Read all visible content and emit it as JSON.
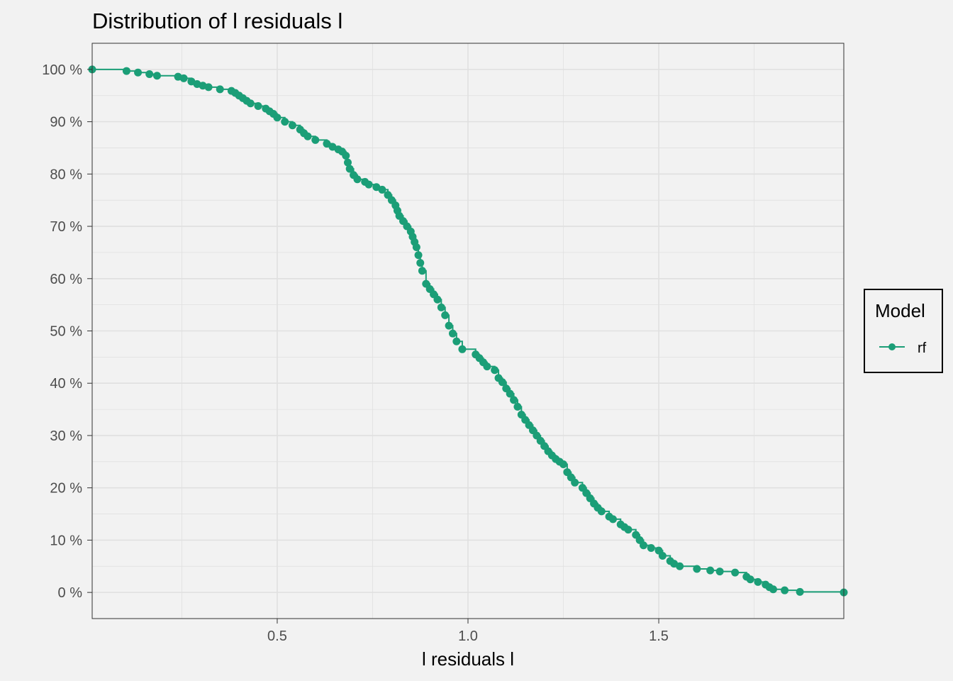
{
  "chart_data": {
    "type": "line",
    "title": "Distribution of l residuals l",
    "xlabel": "l residuals l",
    "ylabel": "",
    "xlim": [
      0.015,
      1.985
    ],
    "ylim": [
      -0.05,
      1.05
    ],
    "x_ticks": [
      0.5,
      1.0,
      1.5
    ],
    "x_tick_labels": [
      "0.5",
      "1.0",
      "1.5"
    ],
    "y_ticks": [
      0,
      0.1,
      0.2,
      0.3,
      0.4,
      0.5,
      0.6,
      0.7,
      0.8,
      0.9,
      1.0
    ],
    "y_tick_labels": [
      "0 %",
      "10 %",
      "20 %",
      "30 %",
      "40 %",
      "50 %",
      "60 %",
      "70 %",
      "80 %",
      "90 %",
      "100 %"
    ],
    "grid": true,
    "step": true,
    "legend": {
      "title": "Model",
      "position": "right"
    },
    "colors": {
      "series": "#1b9e77",
      "background": "#f2f2f2",
      "grid": "#e0e0e0",
      "panel_border": "#333333"
    },
    "series": [
      {
        "name": "rf",
        "x": [
          0.015,
          0.105,
          0.135,
          0.165,
          0.185,
          0.24,
          0.255,
          0.275,
          0.29,
          0.305,
          0.32,
          0.35,
          0.38,
          0.39,
          0.4,
          0.41,
          0.42,
          0.43,
          0.45,
          0.47,
          0.48,
          0.49,
          0.5,
          0.52,
          0.54,
          0.56,
          0.57,
          0.58,
          0.6,
          0.63,
          0.645,
          0.66,
          0.67,
          0.68,
          0.685,
          0.69,
          0.7,
          0.71,
          0.73,
          0.74,
          0.76,
          0.775,
          0.79,
          0.8,
          0.81,
          0.815,
          0.82,
          0.83,
          0.84,
          0.85,
          0.855,
          0.86,
          0.865,
          0.87,
          0.875,
          0.88,
          0.89,
          0.9,
          0.91,
          0.92,
          0.93,
          0.94,
          0.95,
          0.96,
          0.97,
          0.985,
          1.02,
          1.03,
          1.04,
          1.05,
          1.07,
          1.08,
          1.09,
          1.1,
          1.11,
          1.12,
          1.13,
          1.14,
          1.15,
          1.16,
          1.17,
          1.18,
          1.19,
          1.2,
          1.21,
          1.22,
          1.23,
          1.24,
          1.25,
          1.26,
          1.27,
          1.28,
          1.3,
          1.31,
          1.32,
          1.33,
          1.34,
          1.35,
          1.37,
          1.38,
          1.4,
          1.41,
          1.42,
          1.44,
          1.45,
          1.46,
          1.48,
          1.5,
          1.51,
          1.53,
          1.54,
          1.555,
          1.6,
          1.635,
          1.66,
          1.7,
          1.73,
          1.74,
          1.76,
          1.78,
          1.79,
          1.8,
          1.83,
          1.87,
          1.985
        ],
        "y": [
          1.0,
          0.997,
          0.994,
          0.991,
          0.988,
          0.986,
          0.983,
          0.977,
          0.972,
          0.969,
          0.966,
          0.962,
          0.959,
          0.955,
          0.95,
          0.945,
          0.94,
          0.935,
          0.93,
          0.925,
          0.92,
          0.915,
          0.908,
          0.9,
          0.893,
          0.885,
          0.878,
          0.872,
          0.865,
          0.858,
          0.852,
          0.847,
          0.843,
          0.835,
          0.822,
          0.81,
          0.798,
          0.79,
          0.785,
          0.78,
          0.775,
          0.77,
          0.76,
          0.75,
          0.74,
          0.73,
          0.72,
          0.71,
          0.7,
          0.69,
          0.68,
          0.67,
          0.66,
          0.645,
          0.63,
          0.615,
          0.59,
          0.58,
          0.57,
          0.56,
          0.545,
          0.53,
          0.51,
          0.495,
          0.48,
          0.465,
          0.455,
          0.448,
          0.44,
          0.432,
          0.425,
          0.41,
          0.402,
          0.39,
          0.38,
          0.368,
          0.355,
          0.34,
          0.33,
          0.32,
          0.31,
          0.3,
          0.29,
          0.28,
          0.27,
          0.262,
          0.255,
          0.25,
          0.245,
          0.23,
          0.22,
          0.21,
          0.2,
          0.19,
          0.18,
          0.17,
          0.162,
          0.155,
          0.145,
          0.14,
          0.13,
          0.125,
          0.12,
          0.11,
          0.1,
          0.09,
          0.085,
          0.08,
          0.07,
          0.06,
          0.055,
          0.05,
          0.045,
          0.042,
          0.04,
          0.038,
          0.03,
          0.025,
          0.02,
          0.015,
          0.01,
          0.006,
          0.004,
          0.001,
          0.0
        ]
      }
    ]
  }
}
